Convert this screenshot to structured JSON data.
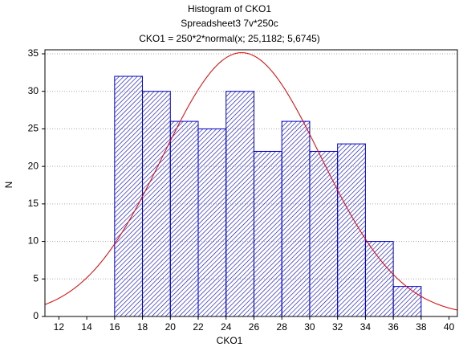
{
  "chart_data": {
    "type": "histogram",
    "title": "Histogram of CKO1",
    "subtitle": "Spreadsheet3 7v*250c",
    "fit_label": "CKO1 = 250*2*normal(x; 25,1182; 5,6745)",
    "x_label": "CKO1",
    "y_label": "N",
    "bins": [
      16,
      18,
      20,
      22,
      24,
      26,
      28,
      30,
      32,
      34,
      36,
      38
    ],
    "values": [
      32,
      30,
      26,
      25,
      30,
      22,
      26,
      22,
      23,
      10,
      4
    ],
    "color": "#0000cc",
    "fit": {
      "n": 250,
      "bin_width": 2,
      "mean": 25.1182,
      "sd": 5.6745,
      "color": "#e00000"
    },
    "xlim": [
      11,
      40.6
    ],
    "xticks": [
      12,
      14,
      16,
      18,
      20,
      22,
      24,
      26,
      28,
      30,
      32,
      34,
      36,
      38,
      40
    ],
    "ylim": [
      0,
      35
    ],
    "yticks": [
      0,
      5,
      10,
      15,
      20,
      25,
      30,
      35
    ],
    "grid": true
  }
}
